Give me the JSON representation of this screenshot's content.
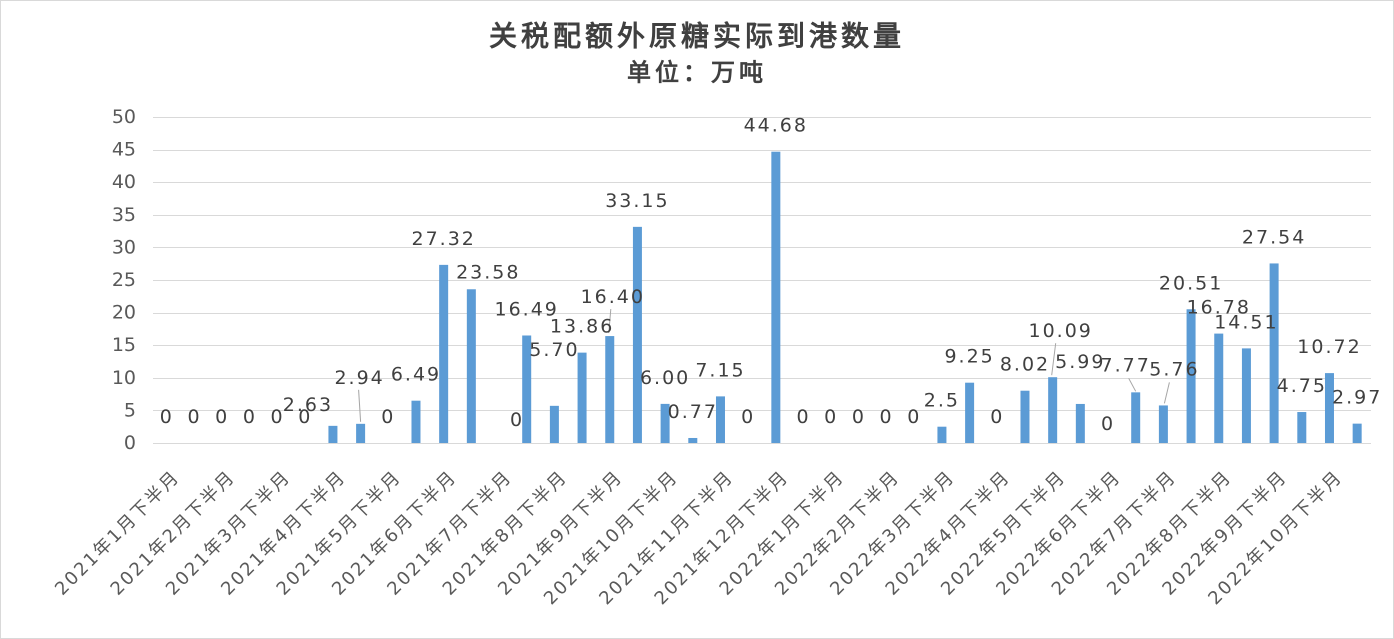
{
  "chart_data": {
    "type": "bar",
    "title": "关税配额外原糖实际到港数量",
    "subtitle": "单位：万吨",
    "categories": [
      "2021年1月下半月",
      "",
      "2021年2月下半月",
      "",
      "2021年3月下半月",
      "",
      "2021年4月下半月",
      "",
      "2021年5月下半月",
      "",
      "2021年6月下半月",
      "",
      "2021年7月下半月",
      "",
      "2021年8月下半月",
      "",
      "2021年9月下半月",
      "",
      "2021年10月下半月",
      "",
      "2021年11月下半月",
      "",
      "2021年12月下半月",
      "",
      "2022年1月下半月",
      "",
      "2022年2月下半月",
      "",
      "2022年3月下半月",
      "",
      "2022年4月下半月",
      "",
      "2022年5月下半月",
      "",
      "2022年6月下半月",
      "",
      "2022年7月下半月",
      "",
      "2022年8月下半月",
      "",
      "2022年9月下半月",
      "",
      "2022年10月下半月",
      ""
    ],
    "values": [
      0,
      0,
      0,
      0,
      0,
      0,
      2.63,
      2.94,
      0,
      6.49,
      27.32,
      23.58,
      0,
      16.49,
      5.7,
      13.86,
      16.4,
      33.15,
      6.0,
      0.77,
      7.15,
      0,
      44.68,
      0,
      0,
      0,
      0,
      0,
      2.5,
      9.25,
      0,
      8.02,
      10.09,
      5.99,
      0,
      7.77,
      5.76,
      20.51,
      16.78,
      14.51,
      27.54,
      4.75,
      10.72,
      2.97
    ],
    "data_labels": [
      "0",
      "0",
      "0",
      "0",
      "0",
      "0",
      "2.63",
      "2.94",
      "0",
      "6.49",
      "27.32",
      "23.58",
      "0",
      "16.49",
      "5.70",
      "13.86",
      "16.40",
      "33.15",
      "6.00",
      "0.77",
      "7.15",
      "0",
      "44.68",
      "0",
      "0",
      "0",
      "0",
      "0",
      "2.5",
      "9.25",
      "0",
      "8.02",
      "10.09",
      "5.99",
      "0",
      "7.77",
      "5.76",
      "20.51",
      "16.78",
      "14.51",
      "27.54",
      "4.75",
      "10.72",
      "2.97"
    ],
    "ylim": [
      0,
      50
    ],
    "y_ticks": [
      "0",
      "5",
      "10",
      "15",
      "20",
      "25",
      "30",
      "35",
      "40",
      "45",
      "50"
    ],
    "gridlines": true,
    "show_legend": false,
    "colors": {
      "bar": "#5B9BD5",
      "gridline": "#D9D9D9",
      "axis_text": "#595959",
      "label_text": "#404040",
      "title_text": "#404040",
      "leader_line": "#A6A6A6",
      "border": "#D9D9D9"
    }
  }
}
